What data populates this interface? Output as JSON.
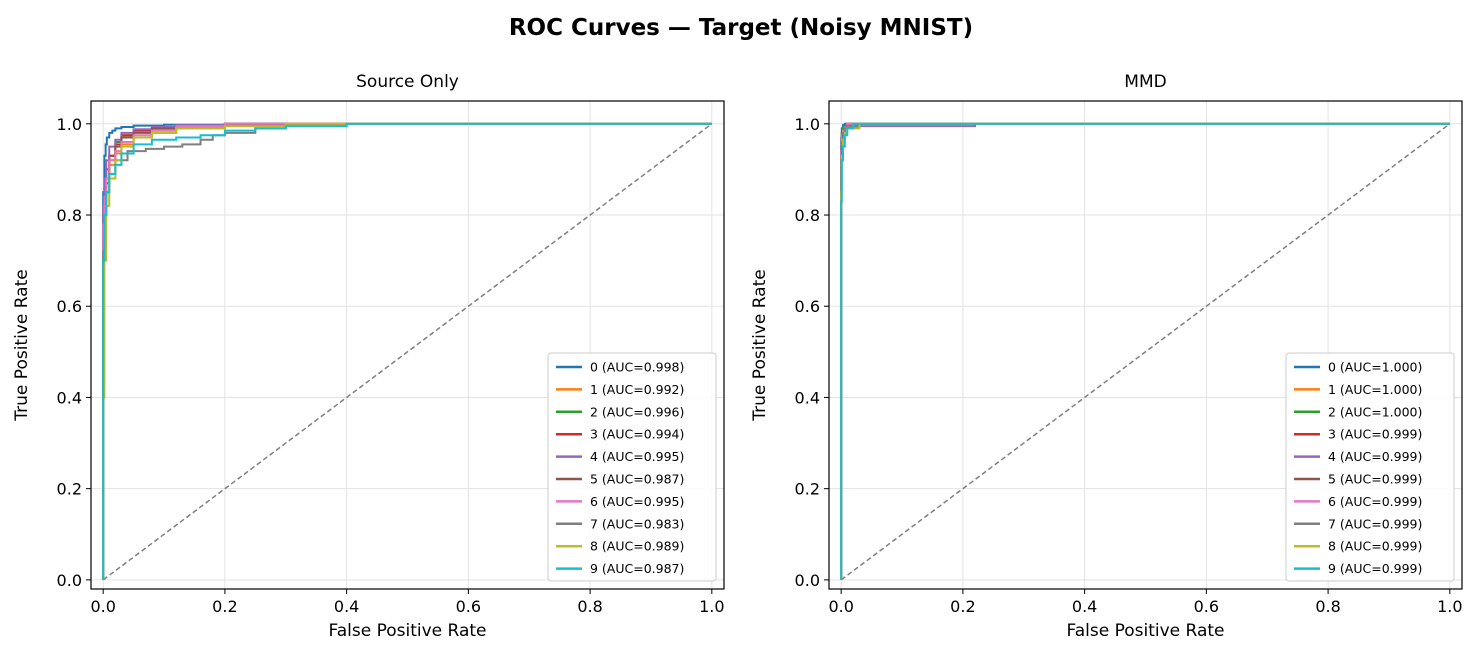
{
  "figure_title": "ROC Curves — Target (Noisy MNIST)",
  "chart_data": [
    {
      "type": "line",
      "title": "Source Only",
      "xlabel": "False Positive Rate",
      "ylabel": "True Positive Rate",
      "xlim": [
        -0.02,
        1.02
      ],
      "ylim": [
        -0.02,
        1.05
      ],
      "xticks": [
        "0.0",
        "0.2",
        "0.4",
        "0.6",
        "0.8",
        "1.0"
      ],
      "yticks": [
        "0.0",
        "0.2",
        "0.4",
        "0.6",
        "0.8",
        "1.0"
      ],
      "grid": true,
      "legend_position": "lower-right",
      "reference_line": {
        "x": [
          0,
          1
        ],
        "y": [
          0,
          1
        ],
        "style": "dashed",
        "color": "#7f7f7f"
      },
      "series": [
        {
          "name": "0  (AUC=0.998)",
          "color": "#1f77b4",
          "x": [
            0,
            0.002,
            0.004,
            0.006,
            0.01,
            0.015,
            0.02,
            0.03,
            0.05,
            0.1,
            0.2,
            0.3,
            1.0
          ],
          "y": [
            0,
            0.85,
            0.93,
            0.955,
            0.97,
            0.98,
            0.985,
            0.99,
            0.993,
            0.996,
            0.998,
            1.0,
            1.0
          ]
        },
        {
          "name": "1  (AUC=0.992)",
          "color": "#ff7f0e",
          "x": [
            0,
            0.002,
            0.005,
            0.01,
            0.02,
            0.03,
            0.05,
            0.08,
            0.12,
            0.2,
            0.3,
            0.45,
            1.0
          ],
          "y": [
            0,
            0.72,
            0.82,
            0.87,
            0.91,
            0.935,
            0.955,
            0.97,
            0.98,
            0.99,
            0.995,
            1.0,
            1.0
          ]
        },
        {
          "name": "2  (AUC=0.996)",
          "color": "#2ca02c",
          "x": [
            0,
            0.002,
            0.005,
            0.01,
            0.02,
            0.03,
            0.05,
            0.08,
            0.12,
            0.2,
            0.3,
            0.57,
            1.0
          ],
          "y": [
            0,
            0.7,
            0.8,
            0.87,
            0.93,
            0.96,
            0.975,
            0.985,
            0.99,
            0.995,
            0.997,
            1.0,
            1.0
          ]
        },
        {
          "name": "3  (AUC=0.994)",
          "color": "#d62728",
          "x": [
            0,
            0.002,
            0.005,
            0.01,
            0.02,
            0.03,
            0.05,
            0.08,
            0.12,
            0.2,
            0.3,
            1.0
          ],
          "y": [
            0,
            0.8,
            0.86,
            0.9,
            0.93,
            0.955,
            0.975,
            0.985,
            0.99,
            0.995,
            1.0,
            1.0
          ]
        },
        {
          "name": "4  (AUC=0.995)",
          "color": "#9467bd",
          "x": [
            0,
            0.002,
            0.005,
            0.01,
            0.02,
            0.03,
            0.05,
            0.08,
            0.12,
            0.2,
            0.3,
            1.0
          ],
          "y": [
            0,
            0.82,
            0.88,
            0.92,
            0.95,
            0.965,
            0.98,
            0.988,
            0.993,
            0.997,
            1.0,
            1.0
          ]
        },
        {
          "name": "5  (AUC=0.987)",
          "color": "#8c564b",
          "x": [
            0,
            0.002,
            0.005,
            0.01,
            0.02,
            0.03,
            0.05,
            0.08,
            0.12,
            0.2,
            0.3,
            1.0
          ],
          "y": [
            0,
            0.75,
            0.83,
            0.88,
            0.92,
            0.95,
            0.97,
            0.98,
            0.99,
            0.995,
            1.0,
            1.0
          ]
        },
        {
          "name": "6  (AUC=0.995)",
          "color": "#e377c2",
          "x": [
            0,
            0.002,
            0.005,
            0.01,
            0.02,
            0.03,
            0.05,
            0.08,
            0.12,
            0.2,
            0.3,
            1.0
          ],
          "y": [
            0,
            0.78,
            0.84,
            0.88,
            0.92,
            0.94,
            0.96,
            0.975,
            0.985,
            0.995,
            1.0,
            1.0
          ]
        },
        {
          "name": "7  (AUC=0.983)",
          "color": "#7f7f7f",
          "x": [
            0,
            0.002,
            0.005,
            0.01,
            0.02,
            0.04,
            0.07,
            0.1,
            0.13,
            0.16,
            0.18,
            0.2,
            0.25,
            0.3,
            0.4,
            0.6,
            1.0
          ],
          "y": [
            0,
            0.72,
            0.8,
            0.85,
            0.89,
            0.92,
            0.94,
            0.945,
            0.95,
            0.955,
            0.965,
            0.975,
            0.98,
            0.99,
            0.995,
            1.0,
            1.0
          ]
        },
        {
          "name": "8  (AUC=0.989)",
          "color": "#bcbd22",
          "x": [
            0,
            0.002,
            0.005,
            0.01,
            0.02,
            0.03,
            0.05,
            0.08,
            0.12,
            0.2,
            0.3,
            0.47,
            1.0
          ],
          "y": [
            0,
            0.4,
            0.7,
            0.82,
            0.88,
            0.92,
            0.95,
            0.97,
            0.98,
            0.99,
            0.995,
            1.0,
            1.0
          ]
        },
        {
          "name": "9  (AUC=0.987)",
          "color": "#17becf",
          "x": [
            0,
            0.002,
            0.005,
            0.01,
            0.02,
            0.03,
            0.05,
            0.08,
            0.12,
            0.16,
            0.2,
            0.25,
            0.3,
            0.4,
            1.0
          ],
          "y": [
            0,
            0.7,
            0.8,
            0.85,
            0.89,
            0.91,
            0.935,
            0.955,
            0.965,
            0.97,
            0.975,
            0.985,
            0.99,
            0.995,
            1.0
          ]
        }
      ]
    },
    {
      "type": "line",
      "title": "MMD",
      "xlabel": "False Positive Rate",
      "ylabel": "True Positive Rate",
      "xlim": [
        -0.02,
        1.02
      ],
      "ylim": [
        -0.02,
        1.05
      ],
      "xticks": [
        "0.0",
        "0.2",
        "0.4",
        "0.6",
        "0.8",
        "1.0"
      ],
      "yticks": [
        "0.0",
        "0.2",
        "0.4",
        "0.6",
        "0.8",
        "1.0"
      ],
      "grid": true,
      "legend_position": "lower-right",
      "reference_line": {
        "x": [
          0,
          1
        ],
        "y": [
          0,
          1
        ],
        "style": "dashed",
        "color": "#7f7f7f"
      },
      "series": [
        {
          "name": "0  (AUC=1.000)",
          "color": "#1f77b4",
          "x": [
            0,
            0.001,
            0.003,
            0.006,
            0.01,
            1.0
          ],
          "y": [
            0,
            0.97,
            0.99,
            0.997,
            1.0,
            1.0
          ]
        },
        {
          "name": "1  (AUC=1.000)",
          "color": "#ff7f0e",
          "x": [
            0,
            0.001,
            0.003,
            0.006,
            0.01,
            0.03,
            0.07,
            1.0
          ],
          "y": [
            0,
            0.93,
            0.97,
            0.985,
            0.992,
            0.997,
            1.0,
            1.0
          ]
        },
        {
          "name": "2  (AUC=1.000)",
          "color": "#2ca02c",
          "x": [
            0,
            0.001,
            0.003,
            0.006,
            0.01,
            0.02,
            1.0
          ],
          "y": [
            0,
            0.95,
            0.98,
            0.99,
            0.995,
            1.0,
            1.0
          ]
        },
        {
          "name": "3  (AUC=0.999)",
          "color": "#d62728",
          "x": [
            0,
            0.001,
            0.003,
            0.006,
            0.01,
            0.02,
            1.0
          ],
          "y": [
            0,
            0.94,
            0.97,
            0.985,
            0.992,
            1.0,
            1.0
          ]
        },
        {
          "name": "4  (AUC=0.999)",
          "color": "#9467bd",
          "x": [
            0,
            0.001,
            0.003,
            0.006,
            0.01,
            0.03,
            0.22,
            0.23,
            1.0
          ],
          "y": [
            0,
            0.95,
            0.975,
            0.985,
            0.99,
            0.993,
            0.995,
            1.0,
            1.0
          ]
        },
        {
          "name": "5  (AUC=0.999)",
          "color": "#8c564b",
          "x": [
            0,
            0.001,
            0.003,
            0.006,
            0.01,
            0.03,
            1.0
          ],
          "y": [
            0,
            0.93,
            0.965,
            0.98,
            0.99,
            1.0,
            1.0
          ]
        },
        {
          "name": "6  (AUC=0.999)",
          "color": "#e377c2",
          "x": [
            0,
            0.001,
            0.003,
            0.006,
            0.01,
            0.03,
            1.0
          ],
          "y": [
            0,
            0.94,
            0.97,
            0.985,
            0.992,
            1.0,
            1.0
          ]
        },
        {
          "name": "7  (AUC=0.999)",
          "color": "#7f7f7f",
          "x": [
            0,
            0.001,
            0.003,
            0.006,
            0.01,
            0.03,
            0.06,
            1.0
          ],
          "y": [
            0,
            0.92,
            0.96,
            0.98,
            0.99,
            0.995,
            1.0,
            1.0
          ]
        },
        {
          "name": "8  (AUC=0.999)",
          "color": "#bcbd22",
          "x": [
            0,
            0.001,
            0.003,
            0.006,
            0.01,
            0.03,
            0.08,
            1.0
          ],
          "y": [
            0,
            0.85,
            0.93,
            0.965,
            0.98,
            0.99,
            1.0,
            1.0
          ]
        },
        {
          "name": "9  (AUC=0.999)",
          "color": "#17becf",
          "x": [
            0,
            0.001,
            0.003,
            0.006,
            0.01,
            0.02,
            0.04,
            1.0
          ],
          "y": [
            0,
            0.83,
            0.92,
            0.95,
            0.975,
            0.99,
            1.0,
            1.0
          ]
        }
      ]
    }
  ]
}
